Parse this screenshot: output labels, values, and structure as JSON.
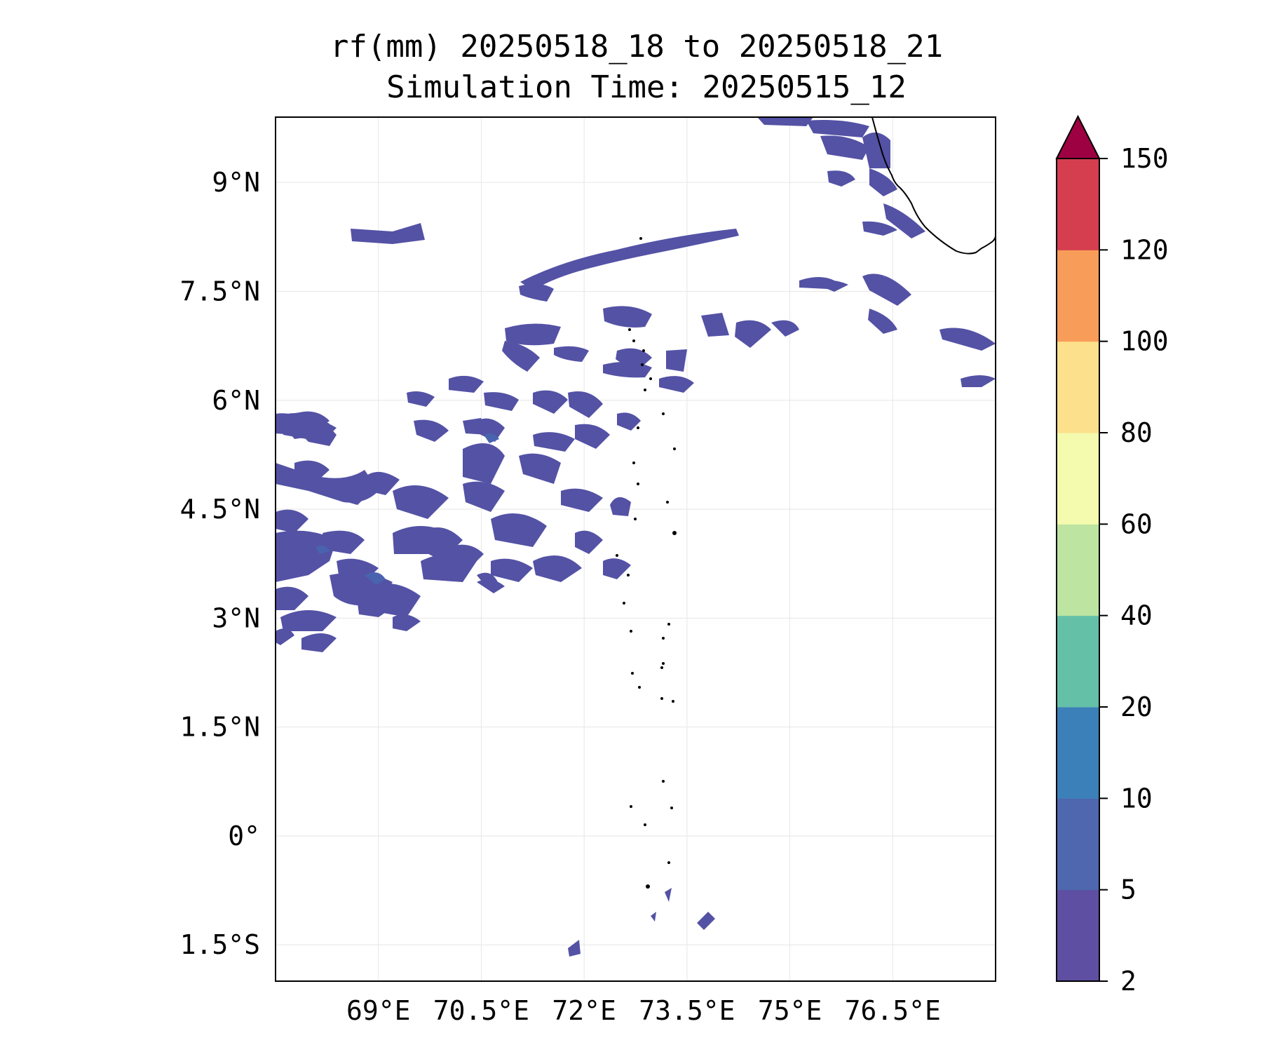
{
  "title": {
    "line1": "rf(mm) 20250518_18 to 20250518_21",
    "line2": "Simulation Time: 20250515_12"
  },
  "map": {
    "lon_range": [
      67.5,
      78.0
    ],
    "lat_range": [
      -2.0,
      9.9
    ],
    "x_ticks": [
      {
        "value": 69.0,
        "label": "69°E"
      },
      {
        "value": 70.5,
        "label": "70.5°E"
      },
      {
        "value": 72.0,
        "label": "72°E"
      },
      {
        "value": 73.5,
        "label": "73.5°E"
      },
      {
        "value": 75.0,
        "label": "75°E"
      },
      {
        "value": 76.5,
        "label": "76.5°E"
      }
    ],
    "y_ticks": [
      {
        "value": 9.0,
        "label": "9°N"
      },
      {
        "value": 7.5,
        "label": "7.5°N"
      },
      {
        "value": 6.0,
        "label": "6°N"
      },
      {
        "value": 4.5,
        "label": "4.5°N"
      },
      {
        "value": 3.0,
        "label": "3°N"
      },
      {
        "value": 1.5,
        "label": "1.5°N"
      },
      {
        "value": 0.0,
        "label": "0°"
      },
      {
        "value": -1.5,
        "label": "1.5°S"
      }
    ],
    "grid": true,
    "field_color": "#5452a5"
  },
  "colorbar": {
    "levels": [
      "2",
      "5",
      "10",
      "20",
      "40",
      "60",
      "80",
      "100",
      "120",
      "150"
    ],
    "colors": [
      "#5e4fa2",
      "#4e67ae",
      "#3c80b9",
      "#65c0a8",
      "#bde4a0",
      "#f4faae",
      "#fde08b",
      "#f89c59",
      "#d43e4f"
    ],
    "extend_color": "#9e0142",
    "extend": "max"
  }
}
